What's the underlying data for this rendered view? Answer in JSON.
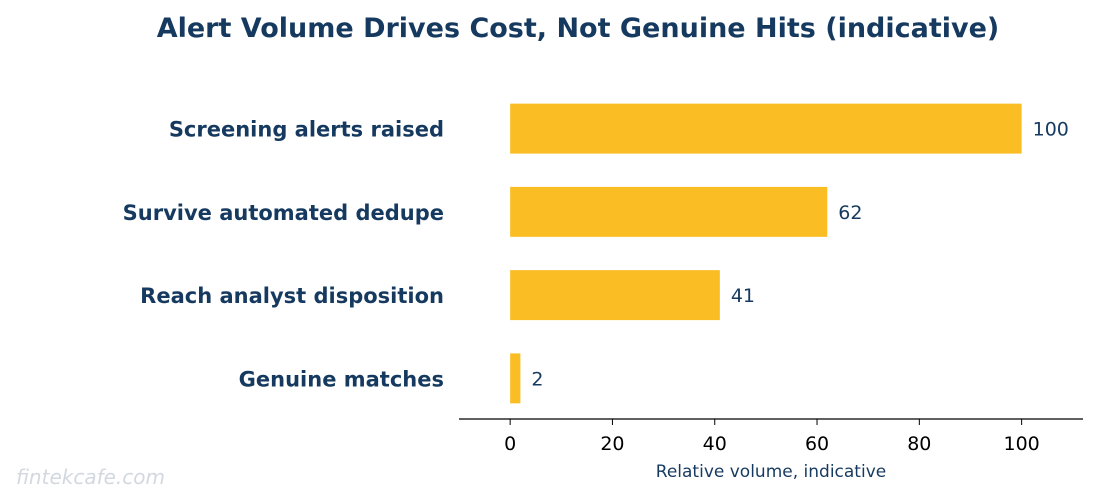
{
  "chart_data": {
    "type": "bar",
    "orientation": "horizontal",
    "title": "Alert Volume Drives Cost, Not Genuine Hits (indicative)",
    "categories": [
      "Screening alerts raised",
      "Survive automated dedupe",
      "Reach analyst disposition",
      "Genuine matches"
    ],
    "values": [
      100,
      62,
      41,
      2
    ],
    "data_labels": [
      "100",
      "62",
      "41",
      "2"
    ],
    "xlabel": "Relative volume, indicative",
    "ylabel": "",
    "xlim": [
      -10,
      112
    ],
    "xticks": [
      0,
      20,
      40,
      60,
      80,
      100
    ],
    "grid": false,
    "legend": "none",
    "bar_color": "#fabd24",
    "text_color": "#163a5f"
  },
  "watermark": "fintekcafe.com"
}
